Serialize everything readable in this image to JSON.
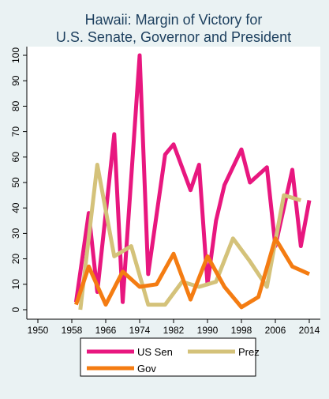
{
  "chart_data": {
    "type": "line",
    "title": [
      "Hawaii: Margin of Victory for",
      "U.S. Senate, Governor and President"
    ],
    "xlabel": "",
    "ylabel": "",
    "xlim": [
      1946,
      2016
    ],
    "ylim": [
      0,
      100
    ],
    "x_ticks": [
      1950,
      1958,
      1966,
      1974,
      1982,
      1990,
      1998,
      2006,
      2014
    ],
    "y_ticks": [
      0,
      10,
      20,
      30,
      40,
      50,
      60,
      70,
      80,
      90,
      100
    ],
    "grid": false,
    "legend_position": "bottom",
    "series": [
      {
        "name": "US Sen",
        "color": "#e8177f",
        "x": [
          1959,
          1962,
          1964,
          1968,
          1970,
          1974,
          1976,
          1980,
          1982,
          1986,
          1988,
          1990,
          1992,
          1994,
          1998,
          2000,
          2004,
          2006,
          2010,
          2012,
          2014
        ],
        "y": [
          3,
          38,
          7,
          69,
          3,
          100,
          14,
          61,
          65,
          47,
          57,
          10,
          35,
          49,
          63,
          50,
          56,
          25,
          55,
          25,
          43
        ]
      },
      {
        "name": "Prez",
        "color": "#d4c27a",
        "x": [
          1960,
          1964,
          1968,
          1972,
          1976,
          1980,
          1984,
          1988,
          1992,
          1996,
          2000,
          2004,
          2008,
          2012
        ],
        "y": [
          0,
          57,
          21,
          25,
          2,
          2,
          11,
          9,
          11,
          28,
          19,
          9,
          45,
          43
        ]
      },
      {
        "name": "Gov",
        "color": "#f47c12",
        "x": [
          1959,
          1962,
          1966,
          1970,
          1974,
          1978,
          1982,
          1986,
          1990,
          1994,
          1998,
          2002,
          2006,
          2010,
          2014
        ],
        "y": [
          2,
          17,
          2,
          15,
          9,
          10,
          22,
          4,
          21,
          9,
          1,
          5,
          28,
          17,
          14
        ]
      }
    ]
  }
}
